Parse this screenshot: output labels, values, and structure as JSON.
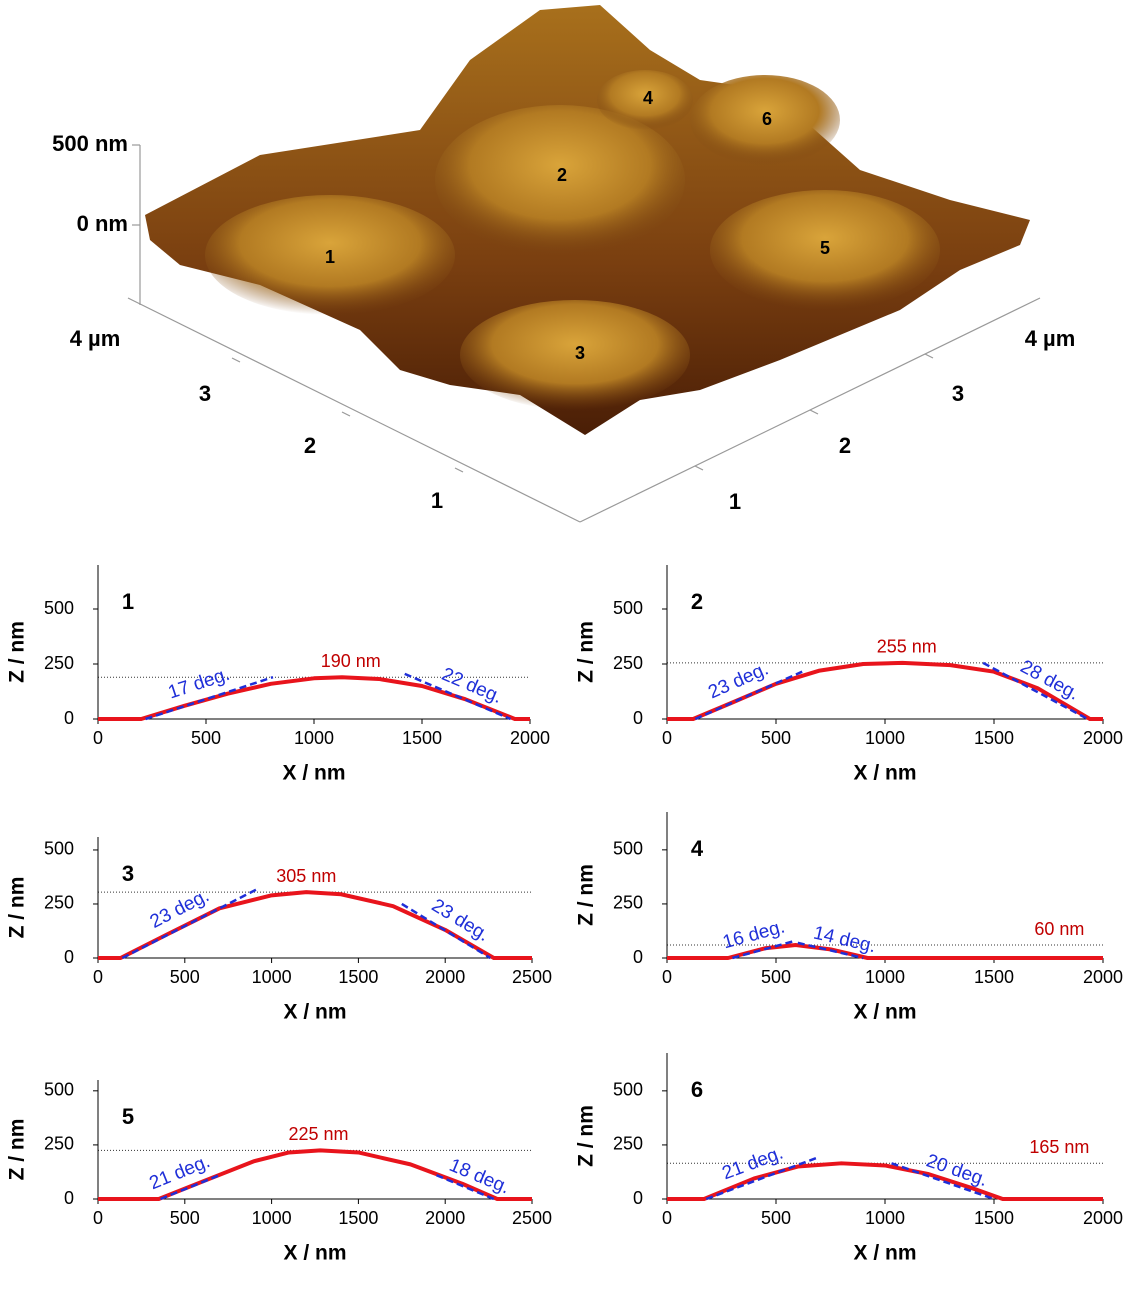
{
  "afm_3d": {
    "z_axis_labels": [
      "500 nm",
      "0 nm"
    ],
    "left_axis_labels": [
      "4 µm",
      "3",
      "2",
      "1"
    ],
    "right_axis_labels": [
      "1",
      "2",
      "3",
      "4 µm"
    ],
    "peak_labels": [
      "1",
      "2",
      "3",
      "4",
      "5",
      "6"
    ]
  },
  "chart_data": [
    {
      "type": "line",
      "panel_label": "1",
      "xlabel": "X / nm",
      "ylabel": "Z / nm",
      "xlim": [
        0,
        2000
      ],
      "xticks": [
        0,
        500,
        1000,
        1500,
        2000
      ],
      "ylim": [
        0,
        700
      ],
      "yticks": [
        0,
        250,
        500
      ],
      "profile": {
        "color": "#e8141c",
        "x": [
          0,
          200,
          400,
          600,
          800,
          1000,
          1130,
          1300,
          1500,
          1700,
          1900,
          1930,
          2000
        ],
        "values": [
          0,
          0,
          60,
          115,
          160,
          185,
          190,
          182,
          150,
          90,
          12,
          0,
          0
        ]
      },
      "tangents": [
        {
          "color": "#1f2fd8",
          "x": [
            220,
            810
          ],
          "values": [
            0,
            190
          ],
          "label": "17 deg."
        },
        {
          "color": "#1f2fd8",
          "x": [
            1420,
            1910
          ],
          "values": [
            205,
            0
          ],
          "label": "22 deg."
        }
      ],
      "height": {
        "value": 190,
        "label": "190 nm"
      }
    },
    {
      "type": "line",
      "panel_label": "2",
      "xlabel": "X / nm",
      "ylabel": "Z / nm",
      "xlim": [
        0,
        2000
      ],
      "xticks": [
        0,
        500,
        1000,
        1500,
        2000
      ],
      "ylim": [
        0,
        700
      ],
      "yticks": [
        0,
        250,
        500
      ],
      "profile": {
        "color": "#e8141c",
        "x": [
          0,
          120,
          300,
          500,
          700,
          900,
          1080,
          1300,
          1500,
          1700,
          1940,
          2000
        ],
        "values": [
          0,
          0,
          75,
          160,
          220,
          250,
          255,
          245,
          215,
          140,
          0,
          0
        ]
      },
      "tangents": [
        {
          "color": "#1f2fd8",
          "x": [
            130,
            620
          ],
          "values": [
            0,
            215
          ],
          "label": "23 deg."
        },
        {
          "color": "#1f2fd8",
          "x": [
            1450,
            1930
          ],
          "values": [
            255,
            0
          ],
          "label": "28 deg."
        }
      ],
      "height": {
        "value": 255,
        "label": "255 nm"
      }
    },
    {
      "type": "line",
      "panel_label": "3",
      "xlabel": "X / nm",
      "ylabel": "Z / nm",
      "xlim": [
        0,
        2500
      ],
      "xticks": [
        0,
        500,
        1000,
        1500,
        2000,
        2500
      ],
      "ylim": [
        0,
        560
      ],
      "yticks": [
        0,
        250,
        500
      ],
      "profile": {
        "color": "#e8141c",
        "x": [
          0,
          130,
          400,
          700,
          1000,
          1200,
          1400,
          1700,
          2000,
          2280,
          2500
        ],
        "values": [
          0,
          0,
          110,
          230,
          290,
          305,
          295,
          240,
          130,
          0,
          0
        ]
      },
      "tangents": [
        {
          "color": "#1f2fd8",
          "x": [
            140,
            920
          ],
          "values": [
            0,
            320
          ],
          "label": "23 deg."
        },
        {
          "color": "#1f2fd8",
          "x": [
            1750,
            2260
          ],
          "values": [
            250,
            0
          ],
          "label": "23 deg."
        }
      ],
      "height": {
        "value": 305,
        "label": "305 nm"
      }
    },
    {
      "type": "line",
      "panel_label": "4",
      "xlabel": "X / nm",
      "ylabel": "Z / nm",
      "xlim": [
        0,
        2000
      ],
      "xticks": [
        0,
        500,
        1000,
        1500,
        2000
      ],
      "ylim": [
        0,
        675
      ],
      "yticks": [
        0,
        250,
        500
      ],
      "profile": {
        "color": "#e8141c",
        "x": [
          0,
          280,
          450,
          590,
          750,
          920,
          2000
        ],
        "values": [
          0,
          0,
          45,
          60,
          40,
          0,
          0
        ]
      },
      "tangents": [
        {
          "color": "#1f2fd8",
          "x": [
            300,
            590
          ],
          "values": [
            0,
            80
          ],
          "label": "16 deg."
        },
        {
          "color": "#1f2fd8",
          "x": [
            600,
            900
          ],
          "values": [
            70,
            0
          ],
          "label": "14 deg."
        }
      ],
      "height": {
        "value": 60,
        "label": "60 nm"
      }
    },
    {
      "type": "line",
      "panel_label": "5",
      "xlabel": "X / nm",
      "ylabel": "Z / nm",
      "xlim": [
        0,
        2500
      ],
      "xticks": [
        0,
        500,
        1000,
        1500,
        2000,
        2500
      ],
      "ylim": [
        0,
        550
      ],
      "yticks": [
        0,
        250,
        500
      ],
      "profile": {
        "color": "#e8141c",
        "x": [
          0,
          350,
          600,
          900,
          1100,
          1280,
          1500,
          1800,
          2100,
          2300,
          2500
        ],
        "values": [
          0,
          0,
          80,
          175,
          215,
          225,
          215,
          160,
          70,
          0,
          0
        ]
      },
      "tangents": [
        {
          "color": "#1f2fd8",
          "x": [
            360,
            700
          ],
          "values": [
            0,
            110
          ],
          "label": "21 deg."
        },
        {
          "color": "#1f2fd8",
          "x": [
            1950,
            2280
          ],
          "values": [
            110,
            0
          ],
          "label": "18 deg."
        }
      ],
      "height": {
        "value": 225,
        "label": "225 nm"
      }
    },
    {
      "type": "line",
      "panel_label": "6",
      "xlabel": "X / nm",
      "ylabel": "Z / nm",
      "xlim": [
        0,
        2000
      ],
      "xticks": [
        0,
        500,
        1000,
        1500,
        2000
      ],
      "ylim": [
        0,
        675
      ],
      "yticks": [
        0,
        250,
        500
      ],
      "profile": {
        "color": "#e8141c",
        "x": [
          0,
          170,
          400,
          600,
          800,
          1000,
          1200,
          1400,
          1540,
          2000
        ],
        "values": [
          0,
          0,
          95,
          150,
          165,
          155,
          115,
          50,
          0,
          0
        ]
      },
      "tangents": [
        {
          "color": "#1f2fd8",
          "x": [
            180,
            700
          ],
          "values": [
            0,
            195
          ],
          "label": "21 deg."
        },
        {
          "color": "#1f2fd8",
          "x": [
            1030,
            1500
          ],
          "values": [
            165,
            0
          ],
          "label": "20 deg."
        }
      ],
      "height": {
        "value": 165,
        "label": "165 nm"
      }
    }
  ]
}
